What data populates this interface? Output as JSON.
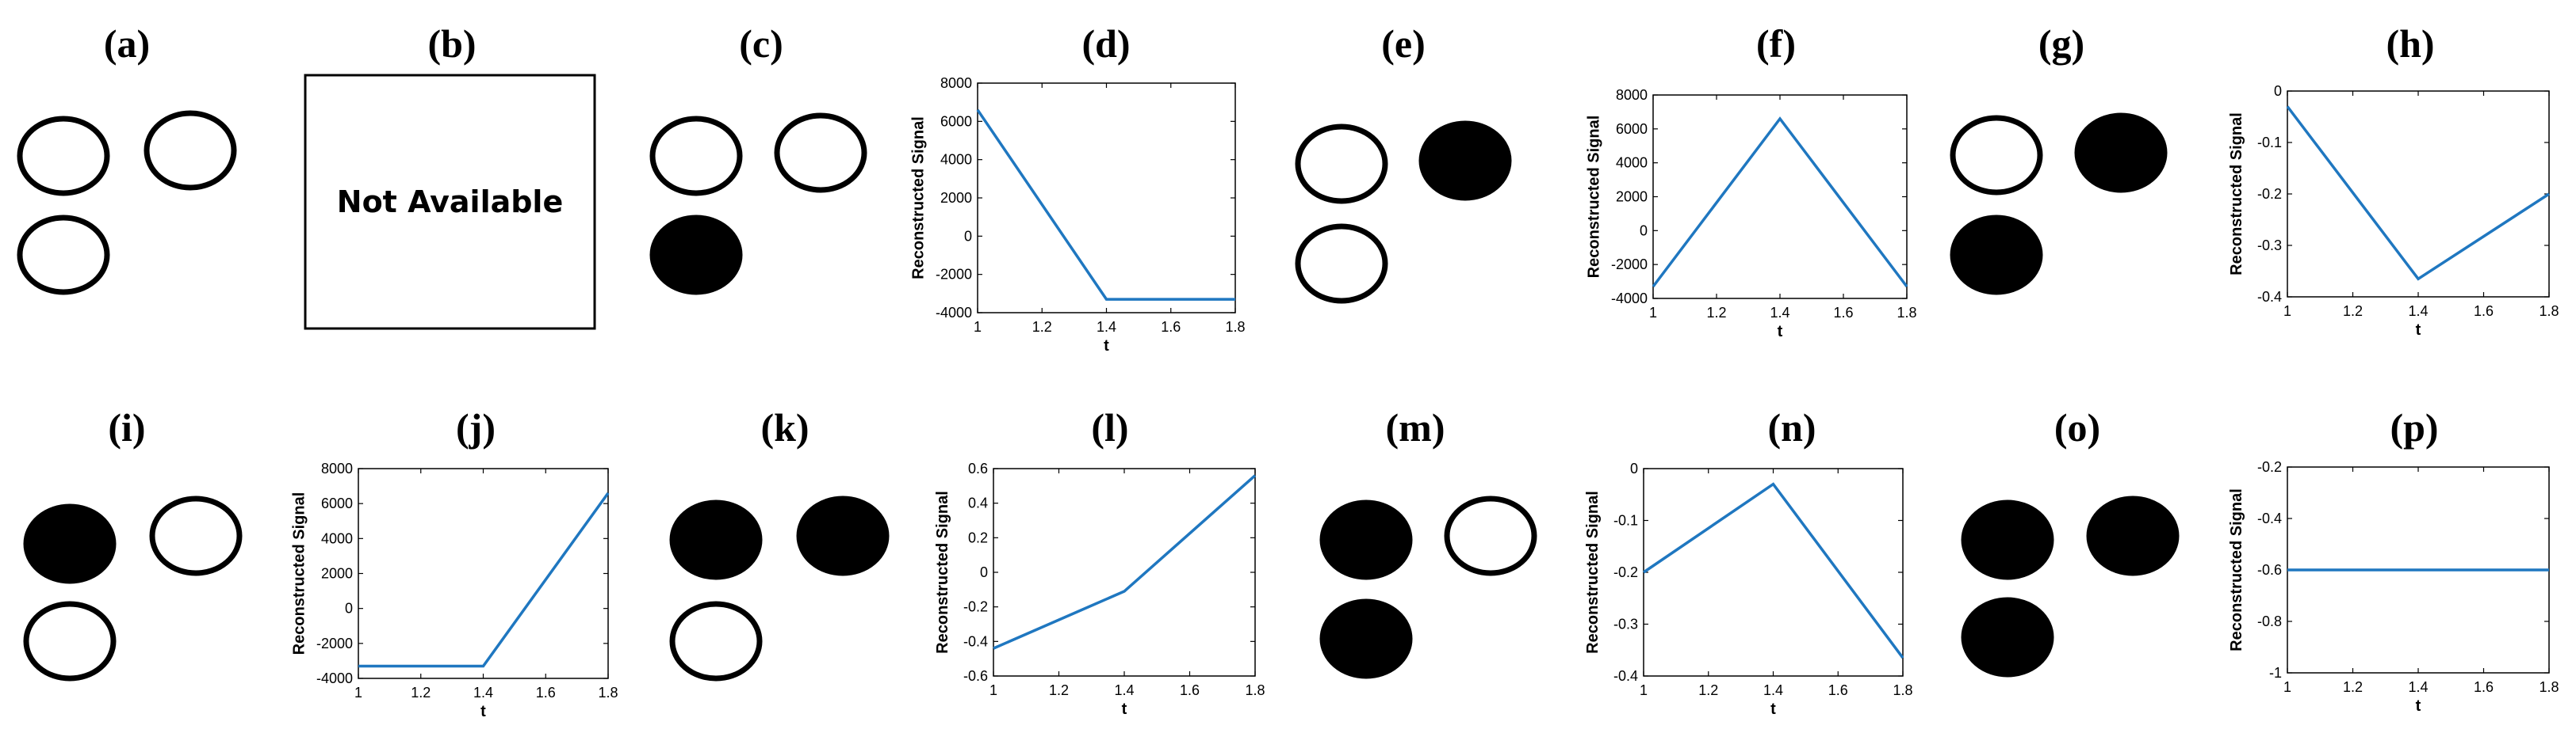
{
  "colors": {
    "line": "#1f77c0",
    "ink": "#000000",
    "empty": "#ffffff"
  },
  "panels": [
    {
      "label": "(a)",
      "kind": "circles",
      "filled": [
        false,
        false,
        false
      ]
    },
    {
      "label": "(b)",
      "kind": "text",
      "text": "Not Available"
    },
    {
      "label": "(c)",
      "kind": "circles",
      "filled": [
        false,
        false,
        true
      ]
    },
    {
      "label": "(d)",
      "kind": "chart",
      "chart": 0
    },
    {
      "label": "(e)",
      "kind": "circles",
      "filled": [
        false,
        true,
        false
      ]
    },
    {
      "label": "(f)",
      "kind": "chart",
      "chart": 1
    },
    {
      "label": "(g)",
      "kind": "circles",
      "filled": [
        false,
        true,
        true
      ]
    },
    {
      "label": "(h)",
      "kind": "chart",
      "chart": 2
    },
    {
      "label": "(i)",
      "kind": "circles",
      "filled": [
        true,
        false,
        false
      ]
    },
    {
      "label": "(j)",
      "kind": "chart",
      "chart": 3
    },
    {
      "label": "(k)",
      "kind": "circles",
      "filled": [
        true,
        true,
        false
      ]
    },
    {
      "label": "(l)",
      "kind": "chart",
      "chart": 4
    },
    {
      "label": "(m)",
      "kind": "circles",
      "filled": [
        true,
        false,
        true
      ]
    },
    {
      "label": "(n)",
      "kind": "chart",
      "chart": 5
    },
    {
      "label": "(o)",
      "kind": "circles",
      "filled": [
        true,
        true,
        true
      ]
    },
    {
      "label": "(p)",
      "kind": "chart",
      "chart": 6
    }
  ],
  "chart_data": [
    {
      "type": "line",
      "x": [
        1,
        1.4,
        1.8
      ],
      "y": [
        6600,
        -3300,
        -3300
      ],
      "xlabel": "t",
      "ylabel": "Reconstructed Signal",
      "xlim": [
        1,
        1.8
      ],
      "ylim": [
        -4000,
        8000
      ],
      "xticks": [
        "1",
        "1.2",
        "1.4",
        "1.6",
        "1.8"
      ],
      "yticks": [
        "-4000",
        "-2000",
        "0",
        "2000",
        "4000",
        "6000",
        "8000"
      ],
      "grid": false
    },
    {
      "type": "line",
      "x": [
        1,
        1.4,
        1.8
      ],
      "y": [
        -3300,
        6600,
        -3300
      ],
      "xlabel": "t",
      "ylabel": "Reconstructed Signal",
      "xlim": [
        1,
        1.8
      ],
      "ylim": [
        -4000,
        8000
      ],
      "xticks": [
        "1",
        "1.2",
        "1.4",
        "1.6",
        "1.8"
      ],
      "yticks": [
        "-4000",
        "-2000",
        "0",
        "2000",
        "4000",
        "6000",
        "8000"
      ],
      "grid": false
    },
    {
      "type": "line",
      "x": [
        1,
        1.4,
        1.8
      ],
      "y": [
        -0.03,
        -0.365,
        -0.2
      ],
      "xlabel": "t",
      "ylabel": "Reconstructed Signal",
      "xlim": [
        1,
        1.8
      ],
      "ylim": [
        -0.4,
        0
      ],
      "xticks": [
        "1",
        "1.2",
        "1.4",
        "1.6",
        "1.8"
      ],
      "yticks": [
        "-0.4",
        "-0.3",
        "-0.2",
        "-0.1",
        "0"
      ],
      "grid": false
    },
    {
      "type": "line",
      "x": [
        1,
        1.4,
        1.8
      ],
      "y": [
        -3300,
        -3300,
        6600
      ],
      "xlabel": "t",
      "ylabel": "Reconstructed Signal",
      "xlim": [
        1,
        1.8
      ],
      "ylim": [
        -4000,
        8000
      ],
      "xticks": [
        "1",
        "1.2",
        "1.4",
        "1.6",
        "1.8"
      ],
      "yticks": [
        "-4000",
        "-2000",
        "0",
        "2000",
        "4000",
        "6000",
        "8000"
      ],
      "grid": false
    },
    {
      "type": "line",
      "x": [
        1,
        1.4,
        1.8
      ],
      "y": [
        -0.44,
        -0.11,
        0.56
      ],
      "xlabel": "t",
      "ylabel": "Reconstructed Signal",
      "xlim": [
        1,
        1.8
      ],
      "ylim": [
        -0.6,
        0.6
      ],
      "xticks": [
        "1",
        "1.2",
        "1.4",
        "1.6",
        "1.8"
      ],
      "yticks": [
        "-0.6",
        "-0.4",
        "-0.2",
        "0",
        "0.2",
        "0.4",
        "0.6"
      ],
      "grid": false
    },
    {
      "type": "line",
      "x": [
        1,
        1.4,
        1.8
      ],
      "y": [
        -0.2,
        -0.03,
        -0.365
      ],
      "xlabel": "t",
      "ylabel": "Reconstructed Signal",
      "xlim": [
        1,
        1.8
      ],
      "ylim": [
        -0.4,
        0
      ],
      "xticks": [
        "1",
        "1.2",
        "1.4",
        "1.6",
        "1.8"
      ],
      "yticks": [
        "-0.4",
        "-0.3",
        "-0.2",
        "-0.1",
        "0"
      ],
      "grid": false
    },
    {
      "type": "line",
      "x": [
        1,
        1.4,
        1.8
      ],
      "y": [
        -0.6,
        -0.6,
        -0.6
      ],
      "xlabel": "t",
      "ylabel": "Reconstructed Signal",
      "xlim": [
        1,
        1.8
      ],
      "ylim": [
        -1,
        -0.2
      ],
      "xticks": [
        "1",
        "1.2",
        "1.4",
        "1.6",
        "1.8"
      ],
      "yticks": [
        "-1",
        "-0.8",
        "-0.6",
        "-0.4",
        "-0.2"
      ],
      "grid": false
    }
  ]
}
